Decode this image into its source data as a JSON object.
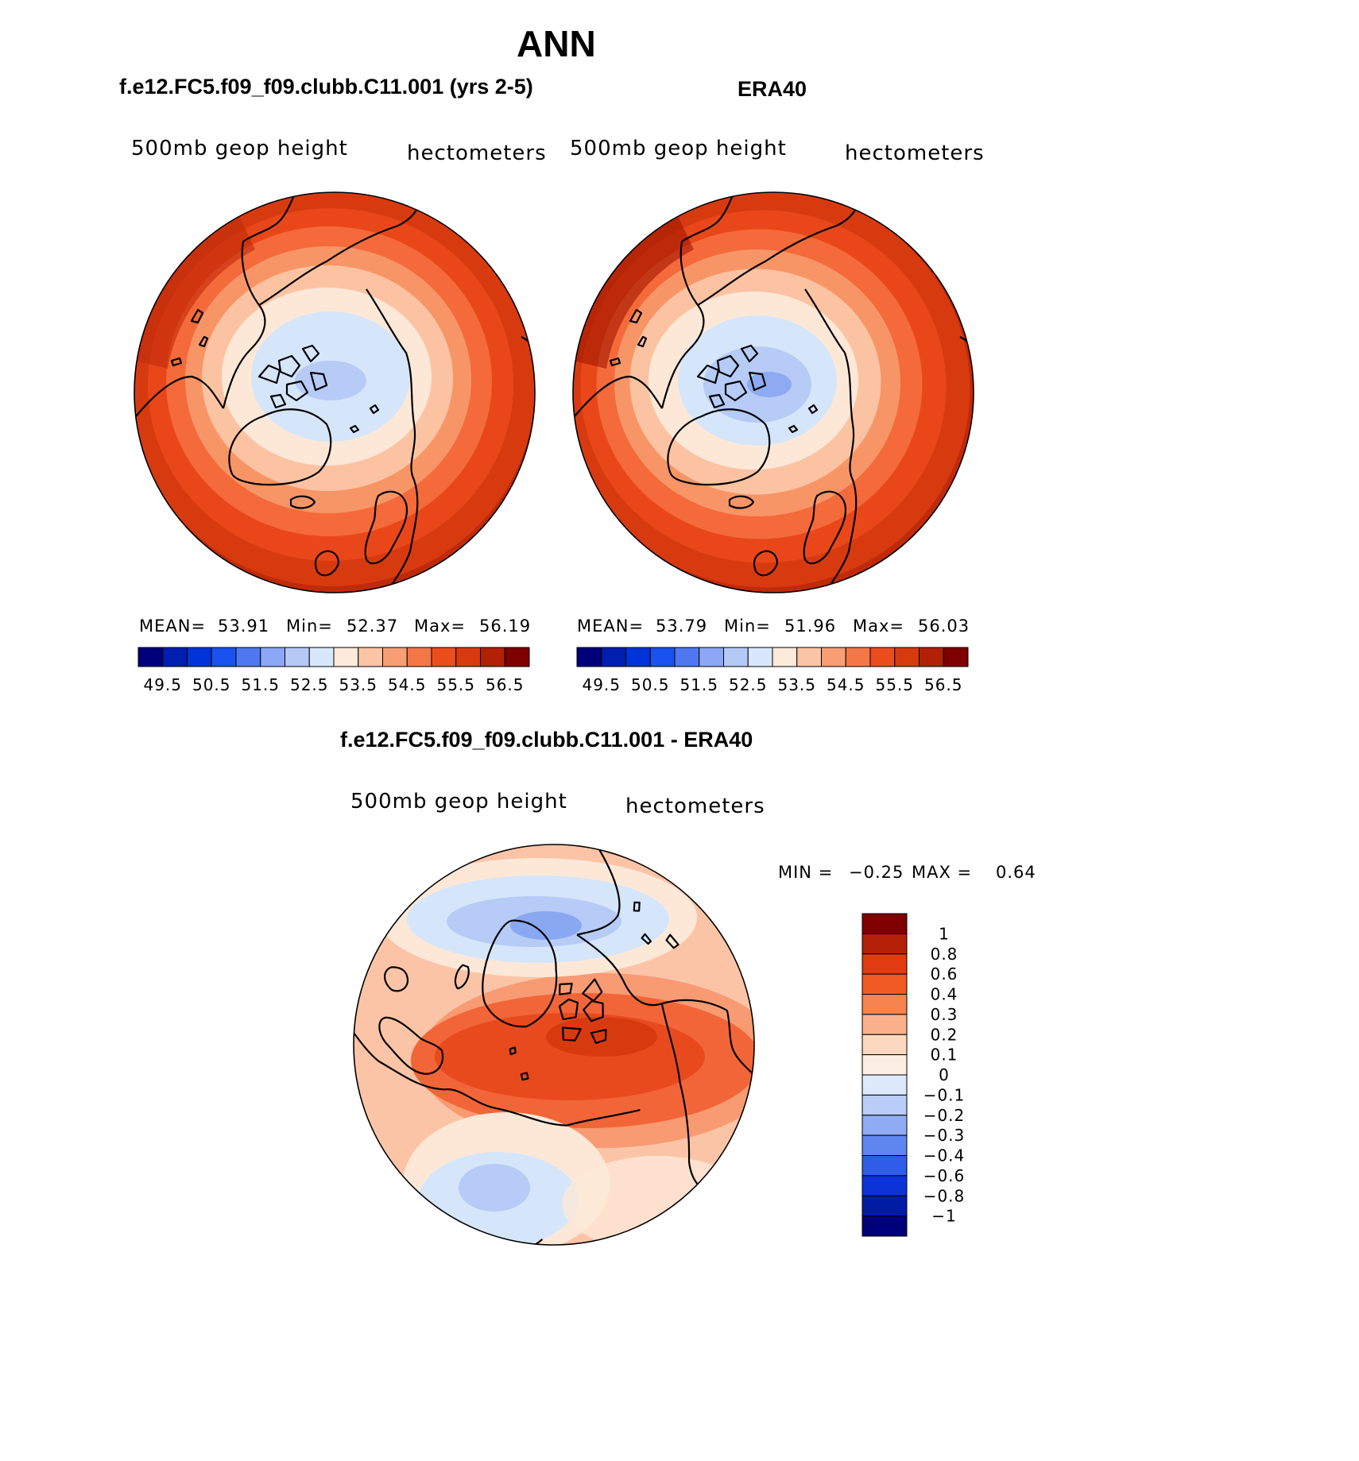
{
  "title": "ANN",
  "panels": [
    {
      "title": "f.e12.FC5.f09_f09.clubb.C11.001 (yrs 2-5)",
      "variable": "500mb geop height",
      "units": "hectometers",
      "stats": {
        "mean_label": "MEAN=",
        "mean": "53.91",
        "min_label": "Min=",
        "min": "52.37",
        "max_label": "Max=",
        "max": "56.19"
      }
    },
    {
      "title": "ERA40",
      "variable": "500mb geop height",
      "units": "hectometers",
      "stats": {
        "mean_label": "MEAN=",
        "mean": "53.79",
        "min_label": "Min=",
        "min": "51.96",
        "max_label": "Max=",
        "max": "56.03"
      }
    }
  ],
  "colorbar_abs": {
    "labels": [
      "49.5",
      "50.5",
      "51.5",
      "52.5",
      "53.5",
      "54.5",
      "55.5",
      "56.5"
    ],
    "colors": [
      "#00007a",
      "#001eb0",
      "#0033d9",
      "#1a52f0",
      "#4f78f0",
      "#8ca7f5",
      "#b5c9f7",
      "#d8e7fb",
      "#fdeada",
      "#fcc4a6",
      "#f89e75",
      "#f47748",
      "#ec4d1e",
      "#d83a10",
      "#b12106",
      "#7e0000"
    ]
  },
  "diff": {
    "title": "f.e12.FC5.f09_f09.clubb.C11.001 - ERA40",
    "variable": "500mb geop height",
    "units": "hectometers",
    "min_label": "MIN =",
    "min": "−0.25",
    "max_label": "MAX =",
    "max": "0.64",
    "colorbar_labels": [
      "1",
      "0.8",
      "0.6",
      "0.4",
      "0.3",
      "0.2",
      "0.1",
      "0",
      "−0.1",
      "−0.2",
      "−0.3",
      "−0.4",
      "−0.6",
      "−0.8",
      "−1"
    ],
    "colorbar_colors": [
      "#7e0000",
      "#b52108",
      "#e23b10",
      "#f25a24",
      "#f7844f",
      "#fbb08c",
      "#fdd8c0",
      "#fdeee3",
      "#dde9fb",
      "#b9cdf8",
      "#8eabf4",
      "#5e86ef",
      "#2f5ce9",
      "#0c33d6",
      "#001ca4",
      "#00007a"
    ]
  },
  "map_colors": {
    "c56": "#c02a0a",
    "c555": "#d83a10",
    "c55": "#e9471a",
    "c545": "#f46a3a",
    "c54": "#f89566",
    "c535": "#fcc3a3",
    "c53": "#fde8d8",
    "c525": "#d5e6fb",
    "c52": "#b6cbf6",
    "c515": "#8daaf2",
    "d06": "#e84a1e",
    "d04": "#f26538",
    "d03": "#f89a72",
    "d02": "#fcc4a6",
    "d01": "#fde8d8",
    "dm1": "#d5e6fb",
    "dm2": "#b6cbf6",
    "dm3": "#8aa8f2"
  }
}
